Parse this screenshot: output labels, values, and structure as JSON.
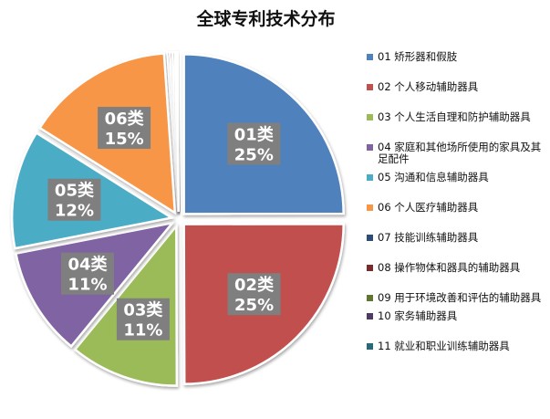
{
  "chart_data": {
    "type": "pie",
    "title": "全球专利技术分布",
    "slices": [
      {
        "label": "01类",
        "name": "01 矫形器和假肢",
        "value": 25,
        "pct_label": "25%",
        "color": "#4f81bd"
      },
      {
        "label": "02类",
        "name": "02 个人移动辅助器具",
        "value": 25,
        "pct_label": "25%",
        "color": "#c0504d"
      },
      {
        "label": "03类",
        "name": "03 个人生活自理和防护辅助器具",
        "value": 11,
        "pct_label": "11%",
        "color": "#9bbb59"
      },
      {
        "label": "04类",
        "name": "04 家庭和其他场所使用的家具及其足配件",
        "value": 11,
        "pct_label": "11%",
        "color": "#8064a2"
      },
      {
        "label": "05类",
        "name": "05 沟通和信息辅助器具",
        "value": 12,
        "pct_label": "12%",
        "color": "#4bacc6"
      },
      {
        "label": "06类",
        "name": "06 个人医疗辅助器具",
        "value": 15,
        "pct_label": "15%",
        "color": "#f79646"
      },
      {
        "label": "",
        "name": "07 技能训练辅助器具",
        "value": 0.25,
        "pct_label": "",
        "color": "#2c4d75"
      },
      {
        "label": "",
        "name": "08 操作物体和器具的辅助器具",
        "value": 0.25,
        "pct_label": "",
        "color": "#772c2a"
      },
      {
        "label": "",
        "name": "09 用于环境改善和评估的辅助器具",
        "value": 0.25,
        "pct_label": "",
        "color": "#5f7530"
      },
      {
        "label": "",
        "name": "10 家务辅助器具",
        "value": 0.2,
        "pct_label": "",
        "color": "#4d3b62"
      },
      {
        "label": "",
        "name": "11 就业和职业训练辅助器具",
        "value": 0.15,
        "pct_label": "",
        "color": "#276a7c"
      }
    ],
    "legend_position": "right"
  }
}
